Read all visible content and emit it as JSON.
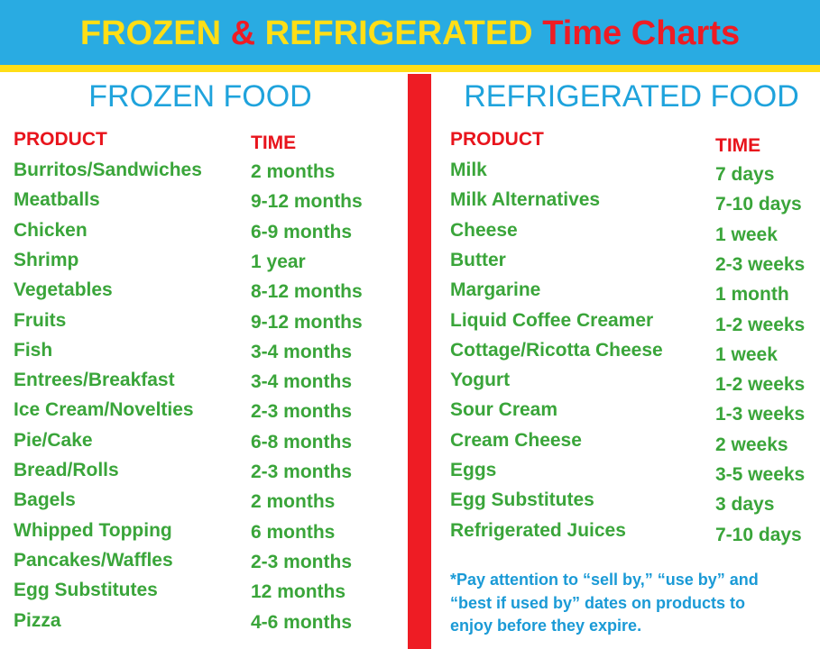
{
  "header": {
    "title_parts": [
      "FROZEN",
      "&",
      "REFRIGERATED",
      "Time Charts"
    ]
  },
  "frozen": {
    "heading": "FROZEN FOOD",
    "columns": [
      "PRODUCT",
      "TIME"
    ],
    "rows": [
      [
        "Burritos/Sandwiches",
        "2 months"
      ],
      [
        "Meatballs",
        "9-12 months"
      ],
      [
        "Chicken",
        "6-9 months"
      ],
      [
        "Shrimp",
        "1 year"
      ],
      [
        "Vegetables",
        "8-12 months"
      ],
      [
        "Fruits",
        "9-12 months"
      ],
      [
        "Fish",
        "3-4 months"
      ],
      [
        "Entrees/Breakfast",
        "3-4 months"
      ],
      [
        "Ice Cream/Novelties",
        "2-3 months"
      ],
      [
        "Pie/Cake",
        "6-8 months"
      ],
      [
        "Bread/Rolls",
        "2-3 months"
      ],
      [
        "Bagels",
        "2 months"
      ],
      [
        "Whipped Topping",
        "6 months"
      ],
      [
        "Pancakes/Waffles",
        "2-3 months"
      ],
      [
        "Egg Substitutes",
        "12 months"
      ],
      [
        "Pizza",
        "4-6 months"
      ]
    ]
  },
  "refrigerated": {
    "heading": "REFRIGERATED FOOD",
    "columns": [
      "PRODUCT",
      "TIME"
    ],
    "rows": [
      [
        "Milk",
        "7 days"
      ],
      [
        "Milk Alternatives",
        "7-10 days"
      ],
      [
        "Cheese",
        "1 week"
      ],
      [
        "Butter",
        "2-3 weeks"
      ],
      [
        "Margarine",
        "1 month"
      ],
      [
        "Liquid Coffee Creamer",
        "1-2 weeks"
      ],
      [
        "Cottage/Ricotta Cheese",
        "1 week"
      ],
      [
        "Yogurt",
        "1-2 weeks"
      ],
      [
        "Sour Cream",
        "1-3 weeks"
      ],
      [
        "Cream Cheese",
        "2 weeks"
      ],
      [
        "Eggs",
        "3-5 weeks"
      ],
      [
        "Egg Substitutes",
        "3 days"
      ],
      [
        "Refrigerated Juices",
        "7-10 days"
      ]
    ],
    "note_lines": [
      "*Pay attention to “sell by,” “use by” and",
      "“best if used by” dates on products to",
      "enjoy before they expire."
    ]
  }
}
